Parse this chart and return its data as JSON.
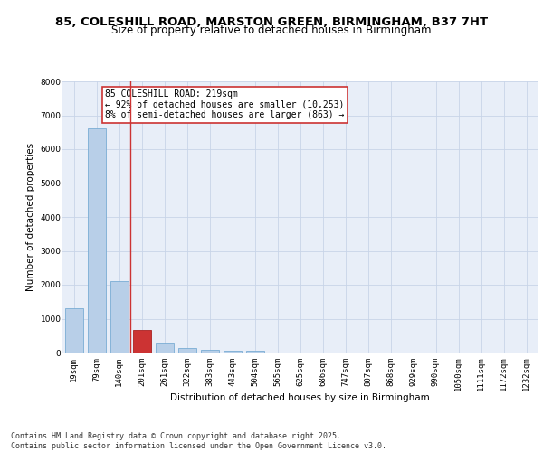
{
  "title_line1": "85, COLESHILL ROAD, MARSTON GREEN, BIRMINGHAM, B37 7HT",
  "title_line2": "Size of property relative to detached houses in Birmingham",
  "xlabel": "Distribution of detached houses by size in Birmingham",
  "ylabel": "Number of detached properties",
  "categories": [
    "19sqm",
    "79sqm",
    "140sqm",
    "201sqm",
    "261sqm",
    "322sqm",
    "383sqm",
    "443sqm",
    "504sqm",
    "565sqm",
    "625sqm",
    "686sqm",
    "747sqm",
    "807sqm",
    "868sqm",
    "929sqm",
    "990sqm",
    "1050sqm",
    "1111sqm",
    "1172sqm",
    "1232sqm"
  ],
  "values": [
    1320,
    6620,
    2100,
    660,
    300,
    130,
    90,
    60,
    60,
    0,
    0,
    0,
    0,
    0,
    0,
    0,
    0,
    0,
    0,
    0,
    0
  ],
  "bar_color": "#b8cfe8",
  "bar_edge_color": "#7aacd4",
  "highlight_bar_index": 3,
  "highlight_bar_color": "#cc3333",
  "highlight_bar_edge_color": "#aa2222",
  "vline_color": "#cc3333",
  "annotation_text": "85 COLESHILL ROAD: 219sqm\n← 92% of detached houses are smaller (10,253)\n8% of semi-detached houses are larger (863) →",
  "annotation_box_color": "#ffffff",
  "annotation_box_edge_color": "#cc3333",
  "ylim": [
    0,
    8000
  ],
  "yticks": [
    0,
    1000,
    2000,
    3000,
    4000,
    5000,
    6000,
    7000,
    8000
  ],
  "grid_color": "#c8d4e8",
  "background_color": "#e8eef8",
  "footer_text": "Contains HM Land Registry data © Crown copyright and database right 2025.\nContains public sector information licensed under the Open Government Licence v3.0.",
  "title_fontsize": 9.5,
  "subtitle_fontsize": 8.5,
  "axis_label_fontsize": 7.5,
  "tick_fontsize": 6.5,
  "annotation_fontsize": 7,
  "footer_fontsize": 6
}
